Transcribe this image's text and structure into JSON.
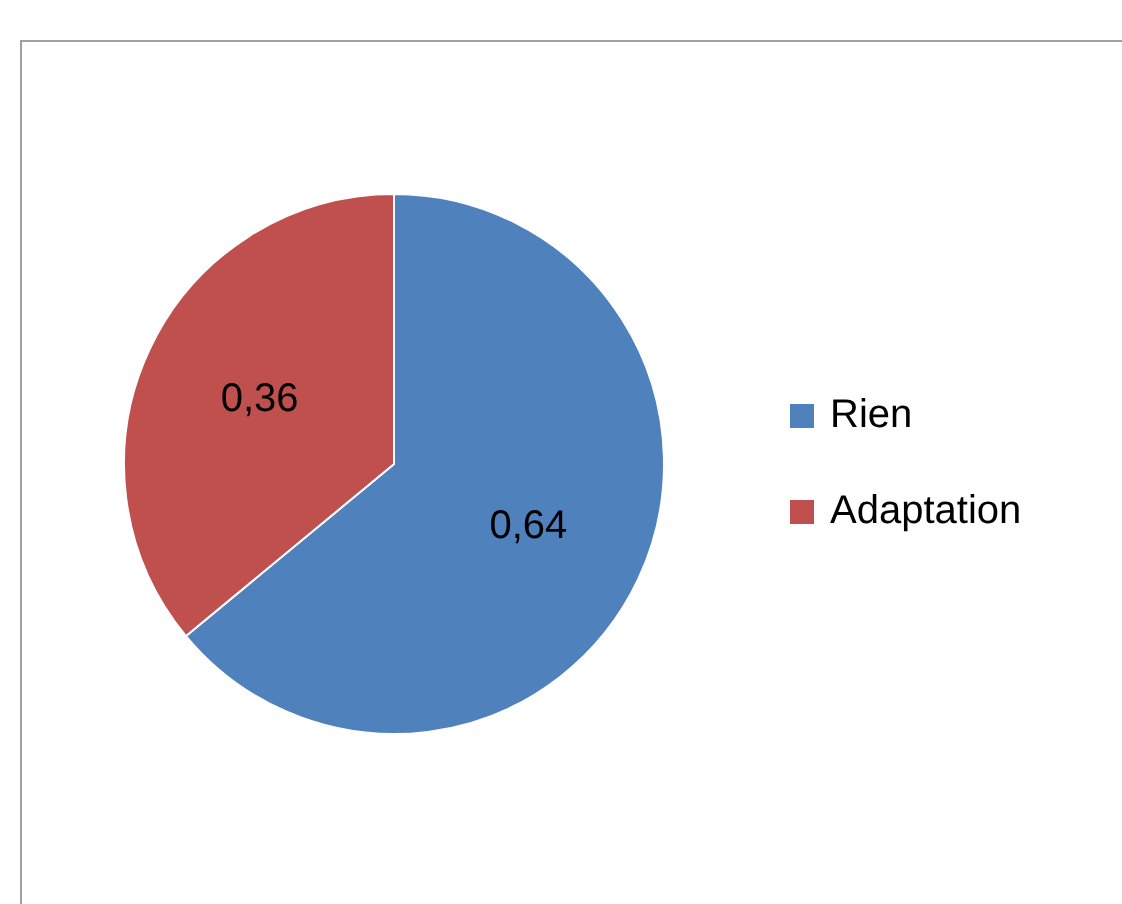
{
  "chart_data": {
    "type": "pie",
    "categories": [
      "Rien",
      "Adaptation"
    ],
    "values": [
      0.64,
      0.36
    ],
    "colors": [
      "#4f81bd",
      "#c0504d"
    ],
    "value_labels": [
      "0,64",
      "0,36"
    ],
    "legend": "right"
  }
}
